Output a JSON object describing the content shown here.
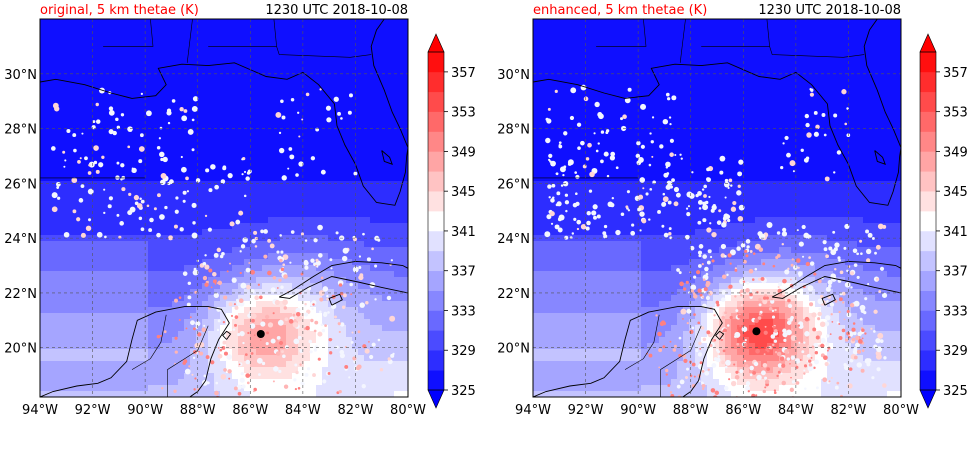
{
  "chart_data": [
    {
      "type": "heatmap",
      "title_left": "original, 5 km thetae (K)",
      "title_right": "1230 UTC 2018-10-08",
      "x_ticks": [
        "94°W",
        "92°W",
        "90°W",
        "88°W",
        "86°W",
        "84°W",
        "82°W",
        "80°W"
      ],
      "y_ticks": [
        "20°N",
        "22°N",
        "24°N",
        "26°N",
        "28°N",
        "30°N"
      ],
      "xlim": [
        -94,
        -80
      ],
      "ylim": [
        18.2,
        32
      ],
      "grid": true,
      "variable_unit": "K",
      "colorbar": {
        "levels": [
          325,
          327,
          329,
          331,
          333,
          335,
          337,
          339,
          341,
          343,
          345,
          347,
          349,
          351,
          353,
          355,
          357,
          359
        ],
        "tick_labels": [
          "325",
          "329",
          "333",
          "337",
          "341",
          "345",
          "349",
          "353",
          "357"
        ],
        "extend": "both",
        "colormap": "bwr"
      },
      "storm_center": {
        "lon": -85.6,
        "lat": 20.5
      },
      "peak_value": 351
    },
    {
      "type": "heatmap",
      "title_left": "enhanced, 5 km thetae (K)",
      "title_right": "1230 UTC 2018-10-08",
      "x_ticks": [
        "94°W",
        "92°W",
        "90°W",
        "88°W",
        "86°W",
        "84°W",
        "82°W",
        "80°W"
      ],
      "y_ticks": [
        "20°N",
        "22°N",
        "24°N",
        "26°N",
        "28°N",
        "30°N"
      ],
      "xlim": [
        -94,
        -80
      ],
      "ylim": [
        18.2,
        32
      ],
      "grid": true,
      "variable_unit": "K",
      "colorbar": {
        "levels": [
          325,
          327,
          329,
          331,
          333,
          335,
          337,
          339,
          341,
          343,
          345,
          347,
          349,
          351,
          353,
          355,
          357,
          359
        ],
        "tick_labels": [
          "325",
          "329",
          "333",
          "337",
          "341",
          "345",
          "349",
          "353",
          "357"
        ],
        "extend": "both",
        "colormap": "bwr"
      },
      "storm_center": {
        "lon": -85.5,
        "lat": 20.6
      },
      "peak_value": 357
    }
  ],
  "colors": {
    "title_left": "#ff0000",
    "title_right": "#000000",
    "coastline": "#000000",
    "grid": "#555555",
    "storm_marker": "#000000"
  }
}
